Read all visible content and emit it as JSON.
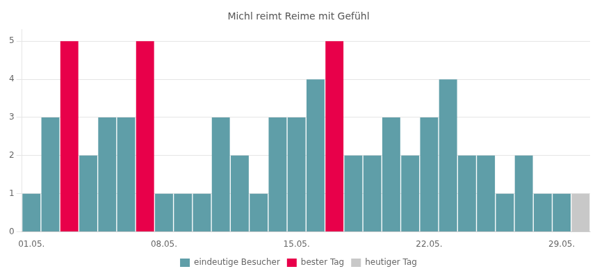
{
  "chart_data": {
    "type": "bar",
    "title": "Michl reimt Reime mit Gefühl",
    "categories": [
      "01.05.",
      null,
      null,
      null,
      null,
      null,
      null,
      "08.05.",
      null,
      null,
      null,
      null,
      null,
      null,
      "15.05.",
      null,
      null,
      null,
      null,
      null,
      null,
      "22.05.",
      null,
      null,
      null,
      null,
      null,
      null,
      "29.05.",
      null
    ],
    "series": [
      {
        "name": "eindeutige Besucher",
        "color": "#5f9ea8",
        "values": [
          1,
          3,
          null,
          2,
          3,
          3,
          null,
          1,
          1,
          1,
          3,
          2,
          1,
          3,
          3,
          4,
          null,
          2,
          2,
          3,
          2,
          3,
          4,
          2,
          2,
          1,
          2,
          1,
          1,
          null
        ]
      },
      {
        "name": "bester Tag",
        "color": "#e8004a",
        "values": [
          null,
          null,
          5,
          null,
          null,
          null,
          5,
          null,
          null,
          null,
          null,
          null,
          null,
          null,
          null,
          null,
          5,
          null,
          null,
          null,
          null,
          null,
          null,
          null,
          null,
          null,
          null,
          null,
          null,
          null
        ]
      },
      {
        "name": "heutiger Tag",
        "color": "#c8c8c8",
        "values": [
          null,
          null,
          null,
          null,
          null,
          null,
          null,
          null,
          null,
          null,
          null,
          null,
          null,
          null,
          null,
          null,
          null,
          null,
          null,
          null,
          null,
          null,
          null,
          null,
          null,
          null,
          null,
          null,
          null,
          1
        ]
      }
    ],
    "ylim": [
      0,
      5.3
    ],
    "yticks": [
      0,
      1,
      2,
      3,
      4,
      5
    ],
    "grid": true,
    "legend": "bottom"
  }
}
